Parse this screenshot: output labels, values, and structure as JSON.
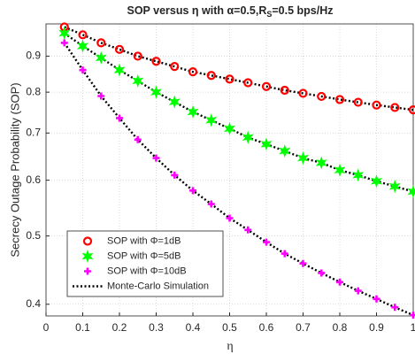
{
  "chart_data": {
    "type": "line",
    "title": [
      "SOP versus η with α=0.5,R",
      "S",
      "=0.5 bps/Hz"
    ],
    "x_label": "η",
    "y_label": "Secrecy Outage Probability (SOP)",
    "x": [
      0.05,
      0.1,
      0.15,
      0.2,
      0.25,
      0.3,
      0.35,
      0.4,
      0.45,
      0.5,
      0.55,
      0.6,
      0.65,
      0.7,
      0.75,
      0.8,
      0.85,
      0.9,
      0.95,
      1
    ],
    "series": [
      {
        "name": "SOP with Φ=1dB",
        "color": "#ff0000",
        "marker": "circle",
        "values": [
          0.99,
          0.965,
          0.94,
          0.92,
          0.9,
          0.885,
          0.87,
          0.855,
          0.845,
          0.835,
          0.825,
          0.815,
          0.805,
          0.797,
          0.789,
          0.781,
          0.774,
          0.767,
          0.761,
          0.755
        ]
      },
      {
        "name": "SOP with Φ=5dB",
        "color": "#00ff00",
        "marker": "hexagram",
        "values": [
          0.97,
          0.93,
          0.895,
          0.86,
          0.83,
          0.8,
          0.775,
          0.75,
          0.73,
          0.71,
          0.69,
          0.675,
          0.66,
          0.645,
          0.635,
          0.62,
          0.61,
          0.598,
          0.588,
          0.578
        ]
      },
      {
        "name": "SOP with Φ=10dB",
        "color": "#ff00ff",
        "marker": "plus",
        "values": [
          0.94,
          0.86,
          0.79,
          0.735,
          0.685,
          0.645,
          0.61,
          0.58,
          0.555,
          0.53,
          0.51,
          0.49,
          0.472,
          0.457,
          0.443,
          0.43,
          0.418,
          0.407,
          0.396,
          0.386
        ]
      },
      {
        "name": "Monte-Carlo Simulation",
        "color": "#000000",
        "dash": true,
        "curves": [
          [
            0.99,
            0.965,
            0.94,
            0.92,
            0.9,
            0.885,
            0.87,
            0.855,
            0.845,
            0.835,
            0.825,
            0.815,
            0.805,
            0.797,
            0.789,
            0.781,
            0.774,
            0.767,
            0.761,
            0.755
          ],
          [
            0.97,
            0.93,
            0.895,
            0.86,
            0.83,
            0.8,
            0.775,
            0.75,
            0.73,
            0.71,
            0.69,
            0.675,
            0.66,
            0.645,
            0.635,
            0.62,
            0.61,
            0.598,
            0.588,
            0.578
          ],
          [
            0.94,
            0.86,
            0.79,
            0.735,
            0.685,
            0.645,
            0.61,
            0.58,
            0.555,
            0.53,
            0.51,
            0.49,
            0.472,
            0.457,
            0.443,
            0.43,
            0.418,
            0.407,
            0.396,
            0.386
          ]
        ]
      }
    ],
    "xlim": [
      0,
      1
    ],
    "xticks": [
      0,
      0.1,
      0.2,
      0.3,
      0.4,
      0.5,
      0.6,
      0.7,
      0.8,
      0.9,
      1
    ],
    "ylim": [
      0.385,
      1
    ],
    "yticks": [
      0.4,
      0.5,
      0.6,
      0.7,
      0.8,
      0.9
    ],
    "log_y": true,
    "grid": true,
    "legend": "lower left"
  }
}
